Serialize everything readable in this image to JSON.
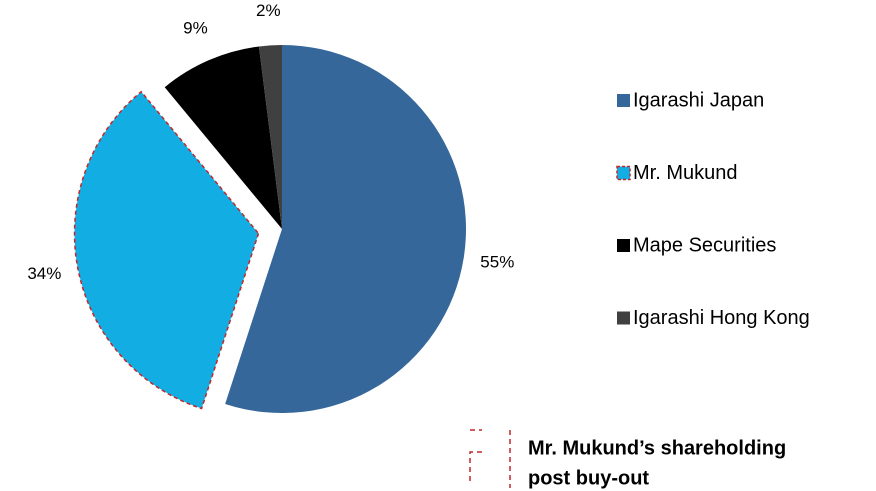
{
  "chart_data": {
    "type": "pie",
    "categories": [
      "Igarashi Japan",
      "Mr. Mukund",
      "Mape Securities",
      "Igarashi Hong Kong"
    ],
    "values": [
      55,
      34,
      9,
      2
    ],
    "value_labels": [
      "55%",
      "34%",
      "9%",
      "2%"
    ],
    "colors": [
      "#35679a",
      "#12aee3",
      "#000000",
      "#404040"
    ],
    "explode": [
      0,
      0.13,
      0,
      0
    ],
    "legend": "right",
    "annotation": [
      "Mr. Mukund’s shareholding",
      "post buy-out"
    ]
  }
}
